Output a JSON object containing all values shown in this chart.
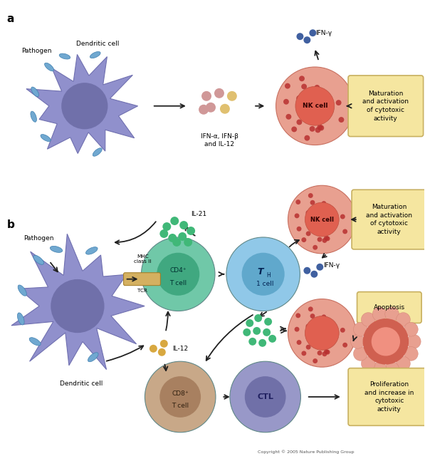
{
  "bg_color": "#ffffff",
  "fig_width": 5.97,
  "fig_height": 6.47,
  "label_a": "a",
  "label_b": "b",
  "copyright": "Copyright © 2005 Nature Publishing Group",
  "dc_color": "#9090cc",
  "dc_nucleus": "#7070aa",
  "dc_edge": "#7070b0",
  "bacteria_color": "#70a8d0",
  "bacteria_edge": "#4080b0",
  "nk_outer": "#e8a090",
  "nk_inner": "#e06050",
  "nk_dot": "#b83030",
  "cd4_outer": "#70c8a8",
  "cd4_nucleus": "#40a880",
  "th1_outer": "#90c8e8",
  "th1_nucleus": "#60a8cc",
  "cd8_outer": "#c8a888",
  "cd8_nucleus": "#a88060",
  "ctl_outer": "#9898c8",
  "ctl_nucleus": "#7070a8",
  "cyto_green": "#40b878",
  "cyto_pink": "#d09898",
  "cyto_yellow": "#e0c070",
  "ifn_blue": "#4060a0",
  "il12_gold": "#d8a840",
  "box_fill": "#f5e6a0",
  "box_edge": "#c8b060",
  "arrow_color": "#202020"
}
